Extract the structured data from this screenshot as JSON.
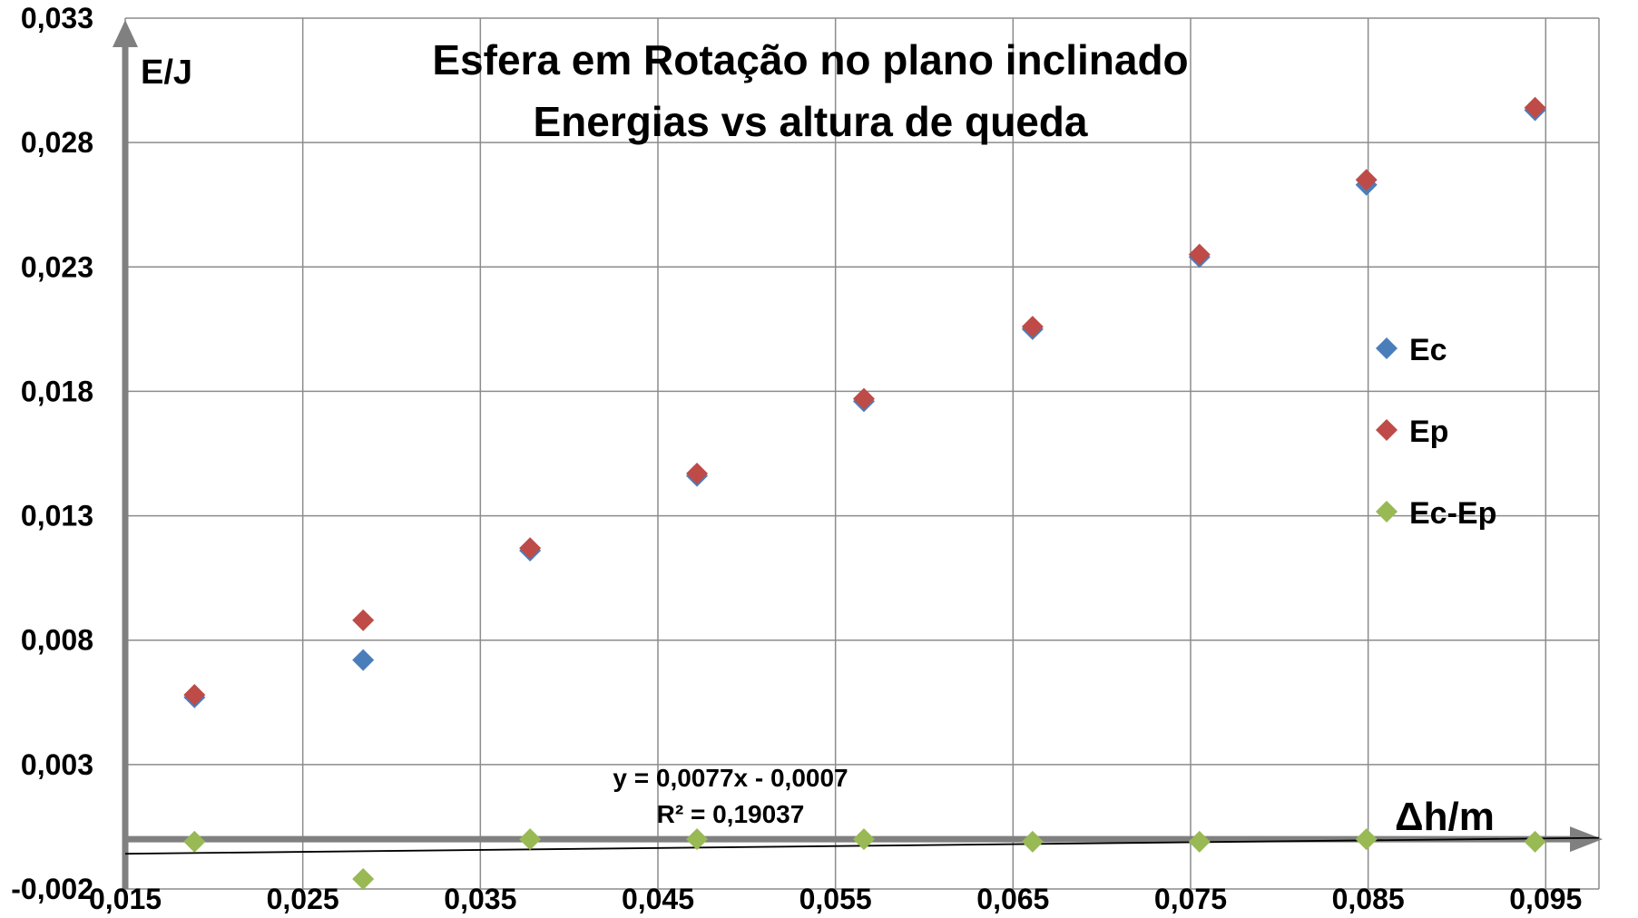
{
  "chart_data": {
    "type": "scatter",
    "title_lines": [
      "Esfera em Rotação no plano inclinado",
      "Energias vs altura de queda"
    ],
    "ylabel": "E/J",
    "xlabel": "Δh/m",
    "xlim": [
      0.015,
      0.098
    ],
    "ylim": [
      -0.002,
      0.033
    ],
    "xticks": [
      0.015,
      0.025,
      0.035,
      0.045,
      0.055,
      0.065,
      0.075,
      0.085,
      0.095
    ],
    "xtick_labels": [
      "0,015",
      "0,025",
      "0,035",
      "0,045",
      "0,055",
      "0,065",
      "0,075",
      "0,085",
      "0,095"
    ],
    "yticks": [
      -0.002,
      0.003,
      0.008,
      0.013,
      0.018,
      0.023,
      0.028,
      0.033
    ],
    "ytick_labels": [
      "-0,002",
      "0,003",
      "0,008",
      "0,013",
      "0,018",
      "0,023",
      "0,028",
      "0,033"
    ],
    "grid": true,
    "legend_position": "right",
    "series": [
      {
        "name": "Ec",
        "color": "#4a7ebb",
        "x": [
          0.0189,
          0.0284,
          0.0378,
          0.0472,
          0.0566,
          0.0661,
          0.0755,
          0.0849,
          0.0944
        ],
        "y": [
          0.0057,
          0.0072,
          0.0116,
          0.0146,
          0.0176,
          0.0205,
          0.0234,
          0.0263,
          0.0293
        ]
      },
      {
        "name": "Ep",
        "color": "#be4b48",
        "x": [
          0.0189,
          0.0284,
          0.0378,
          0.0472,
          0.0566,
          0.0661,
          0.0755,
          0.0849,
          0.0944
        ],
        "y": [
          0.0058,
          0.0088,
          0.0117,
          0.0147,
          0.0177,
          0.0206,
          0.0235,
          0.0265,
          0.0294
        ]
      },
      {
        "name": "Ec-Ep",
        "color": "#98b954",
        "x": [
          0.0189,
          0.0284,
          0.0378,
          0.0472,
          0.0566,
          0.0661,
          0.0755,
          0.0849,
          0.0944
        ],
        "y": [
          -0.0001,
          -0.0016,
          0.0,
          0.0,
          0.0,
          -0.0001,
          -0.0001,
          0.0,
          -0.0001
        ]
      }
    ],
    "trendline": {
      "series": "Ec-Ep",
      "type": "linear",
      "slope": 0.0077,
      "intercept": -0.0007,
      "equation": "y = 0,0077x - 0,0007",
      "r_squared": "R² = 0,19037"
    },
    "axis_color": "#808080"
  }
}
